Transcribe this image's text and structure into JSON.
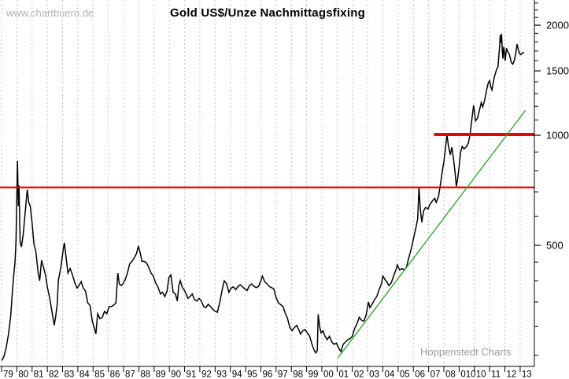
{
  "watermarks": {
    "top_left": "www.chartbuero.de",
    "bottom_right": "Hoppenstedt Charts"
  },
  "colors": {
    "price_line": "#000000",
    "grid": "#c4c4c4",
    "axis": "#000000",
    "resistance_thin": "#e60000",
    "resistance_thick": "#ee0000",
    "trend_green": "#33a833"
  },
  "chart_data": {
    "type": "line",
    "title": "Gold US$/Unze Nachmittagsfixing",
    "x_axis": {
      "start_year": 1979,
      "end_year": 2013,
      "tick_labels": [
        "79",
        "80",
        "81",
        "82",
        "83",
        "84",
        "85",
        "86",
        "87",
        "88",
        "89",
        "90",
        "91",
        "92",
        "93",
        "94",
        "95",
        "96",
        "97",
        "98",
        "99",
        "00",
        "01",
        "02",
        "03",
        "04",
        "05",
        "06",
        "07",
        "08",
        "010",
        "10",
        "11",
        "12",
        "13"
      ]
    },
    "y_axis": {
      "scale": "log",
      "unit": "US$/Unze",
      "major_ticks": [
        500,
        1000,
        1500,
        2000
      ],
      "minor_ticks": [
        250,
        300,
        350,
        400,
        450,
        600,
        700,
        800,
        900,
        1100,
        1200,
        1300,
        1400,
        1600,
        1700,
        1800,
        1900,
        2100,
        2200,
        2300
      ],
      "visible_range": [
        235,
        2300
      ],
      "side": "right"
    },
    "grid": {
      "vertical_per_year": true,
      "dashed": true
    },
    "overlays": [
      {
        "name": "resistance-line-720",
        "type": "hline",
        "value": 720,
        "x_from_year": 1978.5,
        "x_to_year": 2014,
        "width": 2
      },
      {
        "name": "resistance-line-1000",
        "type": "hline",
        "value": 1005,
        "x_from_year": 2007.35,
        "x_to_year": 2014,
        "width": 4
      },
      {
        "name": "uptrend-line",
        "type": "segment",
        "from": [
          2001.05,
          246
        ],
        "to": [
          2013.35,
          1170
        ],
        "width": 1.4
      }
    ],
    "series": [
      {
        "name": "Gold US$ PM-Fixing",
        "points": [
          [
            1979.02,
            242
          ],
          [
            1979.15,
            248
          ],
          [
            1979.3,
            262
          ],
          [
            1979.45,
            285
          ],
          [
            1979.6,
            320
          ],
          [
            1979.72,
            380
          ],
          [
            1979.8,
            415
          ],
          [
            1979.88,
            450
          ],
          [
            1979.95,
            520
          ],
          [
            1980.04,
            850
          ],
          [
            1980.1,
            640
          ],
          [
            1980.14,
            730
          ],
          [
            1980.22,
            510
          ],
          [
            1980.3,
            495
          ],
          [
            1980.42,
            535
          ],
          [
            1980.55,
            615
          ],
          [
            1980.68,
            710
          ],
          [
            1980.78,
            655
          ],
          [
            1980.88,
            640
          ],
          [
            1981.0,
            575
          ],
          [
            1981.12,
            505
          ],
          [
            1981.25,
            480
          ],
          [
            1981.4,
            420
          ],
          [
            1981.5,
            400
          ],
          [
            1981.62,
            455
          ],
          [
            1981.75,
            435
          ],
          [
            1981.88,
            415
          ],
          [
            1982.0,
            385
          ],
          [
            1982.15,
            360
          ],
          [
            1982.3,
            330
          ],
          [
            1982.45,
            302
          ],
          [
            1982.55,
            320
          ],
          [
            1982.65,
            345
          ],
          [
            1982.72,
            400
          ],
          [
            1982.82,
            420
          ],
          [
            1982.92,
            445
          ],
          [
            1983.05,
            490
          ],
          [
            1983.12,
            508
          ],
          [
            1983.25,
            455
          ],
          [
            1983.35,
            420
          ],
          [
            1983.5,
            432
          ],
          [
            1983.65,
            415
          ],
          [
            1983.8,
            395
          ],
          [
            1983.95,
            382
          ],
          [
            1984.1,
            390
          ],
          [
            1984.22,
            398
          ],
          [
            1984.35,
            382
          ],
          [
            1984.5,
            375
          ],
          [
            1984.65,
            348
          ],
          [
            1984.8,
            342
          ],
          [
            1984.95,
            310
          ],
          [
            1985.1,
            295
          ],
          [
            1985.18,
            286
          ],
          [
            1985.3,
            325
          ],
          [
            1985.45,
            315
          ],
          [
            1985.6,
            317
          ],
          [
            1985.75,
            330
          ],
          [
            1985.9,
            325
          ],
          [
            1986.05,
            340
          ],
          [
            1986.2,
            340
          ],
          [
            1986.35,
            343
          ],
          [
            1986.5,
            348
          ],
          [
            1986.62,
            420
          ],
          [
            1986.72,
            392
          ],
          [
            1986.85,
            388
          ],
          [
            1986.95,
            392
          ],
          [
            1987.1,
            402
          ],
          [
            1987.25,
            420
          ],
          [
            1987.4,
            445
          ],
          [
            1987.55,
            452
          ],
          [
            1987.7,
            462
          ],
          [
            1987.85,
            475
          ],
          [
            1987.97,
            498
          ],
          [
            1988.1,
            475
          ],
          [
            1988.2,
            452
          ],
          [
            1988.35,
            452
          ],
          [
            1988.5,
            448
          ],
          [
            1988.65,
            435
          ],
          [
            1988.8,
            420
          ],
          [
            1988.95,
            412
          ],
          [
            1989.1,
            395
          ],
          [
            1989.25,
            385
          ],
          [
            1989.42,
            368
          ],
          [
            1989.55,
            372
          ],
          [
            1989.7,
            362
          ],
          [
            1989.85,
            375
          ],
          [
            1989.97,
            408
          ],
          [
            1990.1,
            415
          ],
          [
            1990.25,
            372
          ],
          [
            1990.4,
            368
          ],
          [
            1990.52,
            352
          ],
          [
            1990.62,
            388
          ],
          [
            1990.72,
            400
          ],
          [
            1990.85,
            383
          ],
          [
            1990.97,
            378
          ],
          [
            1991.1,
            368
          ],
          [
            1991.22,
            358
          ],
          [
            1991.35,
            362
          ],
          [
            1991.5,
            368
          ],
          [
            1991.65,
            355
          ],
          [
            1991.8,
            352
          ],
          [
            1991.95,
            358
          ],
          [
            1992.1,
            352
          ],
          [
            1992.25,
            340
          ],
          [
            1992.4,
            338
          ],
          [
            1992.55,
            345
          ],
          [
            1992.7,
            340
          ],
          [
            1992.85,
            334
          ],
          [
            1993.0,
            330
          ],
          [
            1993.15,
            328
          ],
          [
            1993.3,
            348
          ],
          [
            1993.45,
            375
          ],
          [
            1993.6,
            400
          ],
          [
            1993.75,
            392
          ],
          [
            1993.9,
            372
          ],
          [
            1994.05,
            382
          ],
          [
            1994.2,
            385
          ],
          [
            1994.35,
            378
          ],
          [
            1994.5,
            386
          ],
          [
            1994.65,
            390
          ],
          [
            1994.8,
            385
          ],
          [
            1994.95,
            380
          ],
          [
            1995.1,
            376
          ],
          [
            1995.25,
            388
          ],
          [
            1995.4,
            392
          ],
          [
            1995.55,
            386
          ],
          [
            1995.7,
            383
          ],
          [
            1995.85,
            386
          ],
          [
            1996.0,
            400
          ],
          [
            1996.1,
            412
          ],
          [
            1996.25,
            398
          ],
          [
            1996.4,
            392
          ],
          [
            1996.55,
            386
          ],
          [
            1996.7,
            383
          ],
          [
            1996.85,
            380
          ],
          [
            1997.0,
            360
          ],
          [
            1997.15,
            348
          ],
          [
            1997.3,
            344
          ],
          [
            1997.45,
            340
          ],
          [
            1997.6,
            326
          ],
          [
            1997.75,
            315
          ],
          [
            1997.9,
            298
          ],
          [
            1998.05,
            292
          ],
          [
            1998.2,
            298
          ],
          [
            1998.35,
            302
          ],
          [
            1998.5,
            293
          ],
          [
            1998.6,
            286
          ],
          [
            1998.75,
            292
          ],
          [
            1998.9,
            294
          ],
          [
            1999.05,
            288
          ],
          [
            1999.2,
            282
          ],
          [
            1999.35,
            268
          ],
          [
            1999.5,
            258
          ],
          [
            1999.6,
            254
          ],
          [
            1999.7,
            258
          ],
          [
            1999.76,
            324
          ],
          [
            1999.85,
            300
          ],
          [
            1999.95,
            288
          ],
          [
            2000.08,
            292
          ],
          [
            2000.2,
            282
          ],
          [
            2000.35,
            276
          ],
          [
            2000.5,
            282
          ],
          [
            2000.65,
            272
          ],
          [
            2000.8,
            268
          ],
          [
            2000.95,
            270
          ],
          [
            2001.1,
            262
          ],
          [
            2001.25,
            256
          ],
          [
            2001.4,
            268
          ],
          [
            2001.55,
            272
          ],
          [
            2001.7,
            276
          ],
          [
            2001.85,
            278
          ],
          [
            2002.0,
            282
          ],
          [
            2002.15,
            296
          ],
          [
            2002.3,
            305
          ],
          [
            2002.45,
            318
          ],
          [
            2002.6,
            312
          ],
          [
            2002.75,
            310
          ],
          [
            2002.9,
            322
          ],
          [
            2003.05,
            350
          ],
          [
            2003.15,
            338
          ],
          [
            2003.3,
            345
          ],
          [
            2003.45,
            355
          ],
          [
            2003.6,
            362
          ],
          [
            2003.75,
            378
          ],
          [
            2003.9,
            392
          ],
          [
            2004.0,
            412
          ],
          [
            2004.12,
            404
          ],
          [
            2004.25,
            398
          ],
          [
            2004.4,
            388
          ],
          [
            2004.55,
            395
          ],
          [
            2004.7,
            412
          ],
          [
            2004.85,
            428
          ],
          [
            2004.95,
            442
          ],
          [
            2005.1,
            428
          ],
          [
            2005.25,
            432
          ],
          [
            2005.4,
            428
          ],
          [
            2005.55,
            436
          ],
          [
            2005.7,
            462
          ],
          [
            2005.85,
            488
          ],
          [
            2006.0,
            520
          ],
          [
            2006.15,
            555
          ],
          [
            2006.28,
            590
          ],
          [
            2006.37,
            722
          ],
          [
            2006.45,
            630
          ],
          [
            2006.55,
            578
          ],
          [
            2006.68,
            622
          ],
          [
            2006.8,
            635
          ],
          [
            2006.95,
            628
          ],
          [
            2007.1,
            648
          ],
          [
            2007.25,
            662
          ],
          [
            2007.4,
            672
          ],
          [
            2007.5,
            655
          ],
          [
            2007.65,
            680
          ],
          [
            2007.8,
            745
          ],
          [
            2007.9,
            800
          ],
          [
            2008.0,
            845
          ],
          [
            2008.1,
            920
          ],
          [
            2008.2,
            1005
          ],
          [
            2008.3,
            935
          ],
          [
            2008.42,
            885
          ],
          [
            2008.52,
            928
          ],
          [
            2008.62,
            870
          ],
          [
            2008.72,
            800
          ],
          [
            2008.82,
            725
          ],
          [
            2008.9,
            760
          ],
          [
            2009.0,
            820
          ],
          [
            2009.1,
            900
          ],
          [
            2009.2,
            932
          ],
          [
            2009.32,
            918
          ],
          [
            2009.45,
            928
          ],
          [
            2009.6,
            950
          ],
          [
            2009.72,
            1008
          ],
          [
            2009.85,
            1120
          ],
          [
            2009.95,
            1208
          ],
          [
            2010.08,
            1095
          ],
          [
            2010.2,
            1112
          ],
          [
            2010.35,
            1180
          ],
          [
            2010.45,
            1228
          ],
          [
            2010.55,
            1195
          ],
          [
            2010.68,
            1250
          ],
          [
            2010.8,
            1330
          ],
          [
            2010.92,
            1395
          ],
          [
            2011.0,
            1410
          ],
          [
            2011.08,
            1355
          ],
          [
            2011.15,
            1330
          ],
          [
            2011.3,
            1440
          ],
          [
            2011.45,
            1512
          ],
          [
            2011.55,
            1540
          ],
          [
            2011.65,
            1750
          ],
          [
            2011.7,
            1880
          ],
          [
            2011.74,
            1790
          ],
          [
            2011.78,
            1895
          ],
          [
            2011.83,
            1700
          ],
          [
            2011.87,
            1620
          ],
          [
            2011.92,
            1745
          ],
          [
            2011.97,
            1680
          ],
          [
            2012.02,
            1598
          ],
          [
            2012.1,
            1730
          ],
          [
            2012.2,
            1690
          ],
          [
            2012.3,
            1660
          ],
          [
            2012.42,
            1580
          ],
          [
            2012.52,
            1565
          ],
          [
            2012.62,
            1605
          ],
          [
            2012.72,
            1680
          ],
          [
            2012.8,
            1775
          ],
          [
            2012.88,
            1715
          ],
          [
            2012.96,
            1672
          ],
          [
            2013.06,
            1662
          ],
          [
            2013.15,
            1678
          ],
          [
            2013.25,
            1688
          ]
        ]
      }
    ]
  }
}
